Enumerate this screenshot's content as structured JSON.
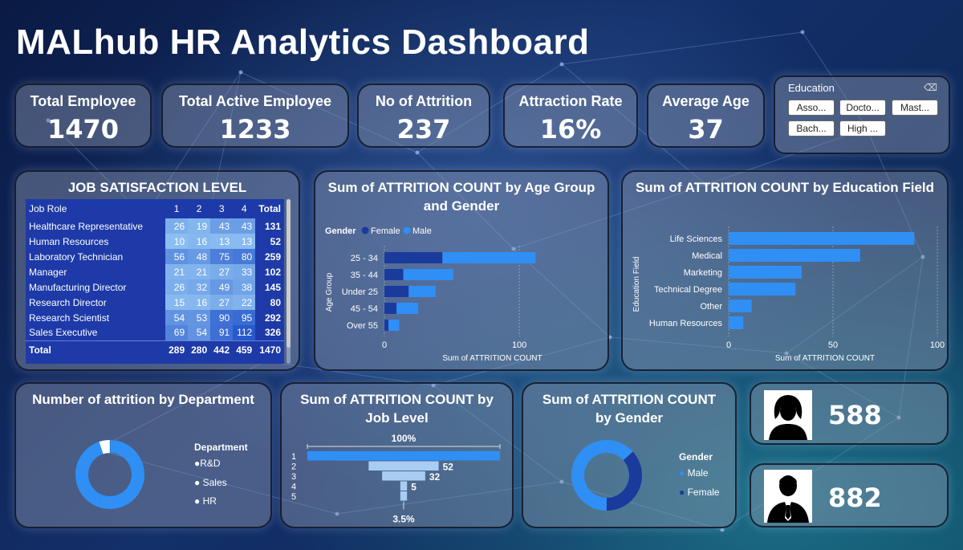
{
  "title": "MALhub HR Analytics Dashboard",
  "kpis": [
    {
      "label": "Total Employee",
      "value": "1470"
    },
    {
      "label": "Total Active Employee",
      "value": "1233"
    },
    {
      "label": "No of Attrition",
      "value": "237"
    },
    {
      "label": "Attraction Rate",
      "value": "16%"
    },
    {
      "label": "Average Age",
      "value": "37"
    }
  ],
  "slicer": {
    "label": "Education",
    "options": [
      "Asso...",
      "Docto...",
      "Mast...",
      "Bach...",
      "High ..."
    ]
  },
  "job_satisfaction": {
    "title": "JOB SATISFACTION LEVEL",
    "headers": [
      "Job Role",
      "1",
      "2",
      "3",
      "4",
      "Total"
    ],
    "rows": [
      [
        "Healthcare Representative",
        "26",
        "19",
        "43",
        "43",
        "131"
      ],
      [
        "Human Resources",
        "10",
        "16",
        "13",
        "13",
        "52"
      ],
      [
        "Laboratory Technician",
        "56",
        "48",
        "75",
        "80",
        "259"
      ],
      [
        "Manager",
        "21",
        "21",
        "27",
        "33",
        "102"
      ],
      [
        "Manufacturing Director",
        "26",
        "32",
        "49",
        "38",
        "145"
      ],
      [
        "Research Director",
        "15",
        "16",
        "27",
        "22",
        "80"
      ],
      [
        "Research Scientist",
        "54",
        "53",
        "90",
        "95",
        "292"
      ],
      [
        "Sales Executive",
        "69",
        "54",
        "91",
        "112",
        "326"
      ]
    ],
    "total": [
      "Total",
      "289",
      "280",
      "442",
      "459",
      "1470"
    ]
  },
  "chart_data": [
    {
      "type": "bar",
      "orientation": "horizontal",
      "stacked": true,
      "title": "Sum of ATTRITION COUNT by Age Group and Gender",
      "legend_title": "Gender",
      "categories": [
        "25 - 34",
        "35 - 44",
        "Under 25",
        "45 - 54",
        "Over 55"
      ],
      "series": [
        {
          "name": "Female",
          "values": [
            43,
            14,
            18,
            9,
            3
          ],
          "color": "#1a3a9c"
        },
        {
          "name": "Male",
          "values": [
            69,
            37,
            20,
            16,
            8
          ],
          "color": "#2f8ff5"
        }
      ],
      "xlabel": "Sum of ATTRITION COUNT",
      "ylabel": "Age Group",
      "xlim": [
        0,
        160
      ],
      "xticks": [
        0,
        100
      ]
    },
    {
      "type": "bar",
      "orientation": "horizontal",
      "title": "Sum of ATTRITION COUNT by Education Field",
      "categories": [
        "Life Sciences",
        "Medical",
        "Marketing",
        "Technical Degree",
        "Other",
        "Human Resources"
      ],
      "values": [
        89,
        63,
        35,
        32,
        11,
        7
      ],
      "color": "#2f8ff5",
      "xlabel": "Sum of ATTRITION COUNT",
      "ylabel": "Education Field",
      "xlim": [
        0,
        100
      ],
      "xticks": [
        0,
        50,
        100
      ]
    },
    {
      "type": "pie",
      "donut": true,
      "title": "Number of attrition by Department",
      "legend_title": "Department",
      "labels": [
        "R&D",
        "Sales",
        "HR"
      ],
      "values": [
        133,
        92,
        12
      ],
      "colors": [
        "#2f8ff5",
        "#2f8ff5",
        "#ffffff"
      ]
    },
    {
      "type": "bar",
      "subtype": "funnel",
      "title": "Sum of ATTRITION COUNT by Job Level",
      "categories": [
        "1",
        "2",
        "3",
        "4",
        "5"
      ],
      "values": [
        143,
        52,
        32,
        5,
        5
      ],
      "value_labels": [
        "",
        "52",
        "32",
        "5",
        ""
      ],
      "top_label": "100%",
      "bottom_label": "3.5%"
    },
    {
      "type": "pie",
      "donut": true,
      "title": "Sum of ATTRITION COUNT by Gender",
      "legend_title": "Gender",
      "labels": [
        "Male",
        "Female"
      ],
      "values": [
        150,
        87
      ],
      "colors": [
        "#2f8ff5",
        "#1a3a9c"
      ]
    }
  ],
  "gender_counts": {
    "female_icon": "female-avatar-icon",
    "female_value": "588",
    "male_icon": "male-avatar-icon",
    "male_value": "882"
  }
}
